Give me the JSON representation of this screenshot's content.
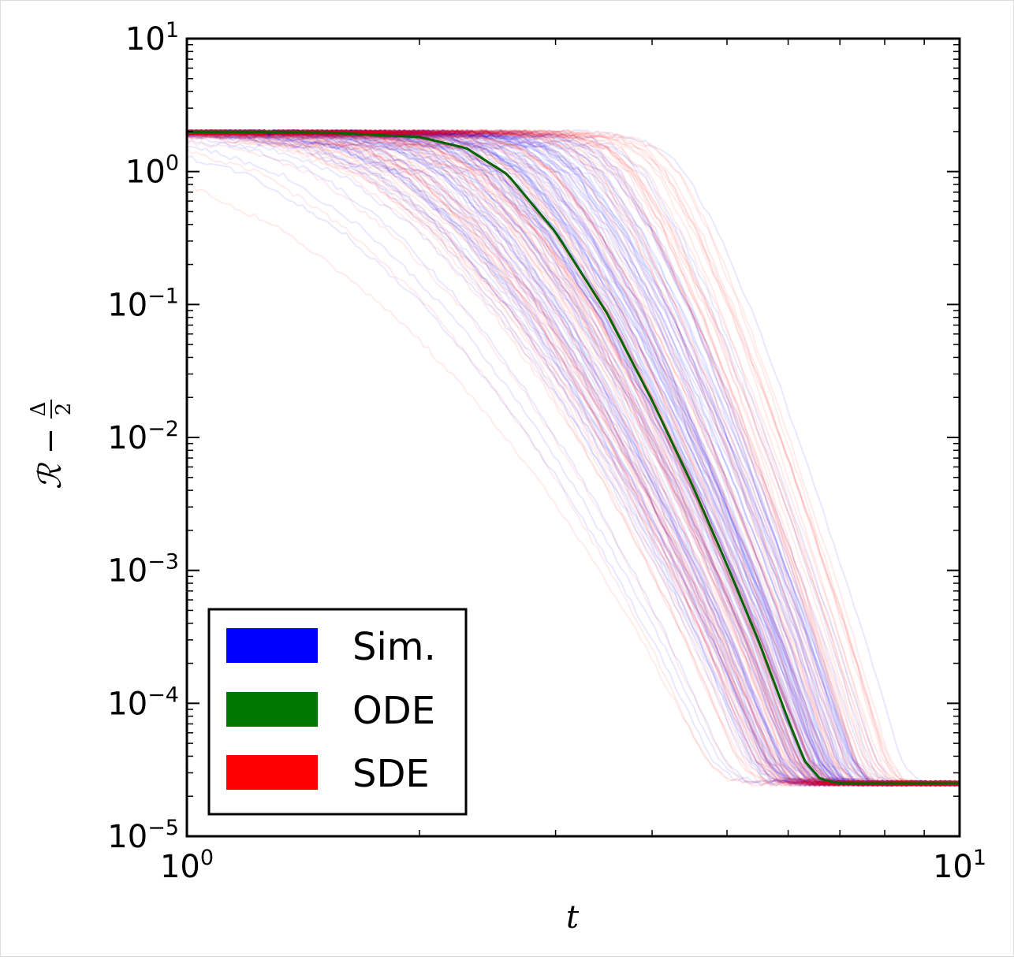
{
  "chart_data": {
    "type": "line",
    "xscale": "log",
    "yscale": "log",
    "xlim": [
      1,
      10
    ],
    "ylim": [
      1e-05,
      10
    ],
    "xlabel": "t",
    "ylabel": "ℛ − Δ/2",
    "ylabel_parts": {
      "main": "ℛ −",
      "frac_num": "Δ",
      "frac_den": "2"
    },
    "x_ticks": [
      {
        "value": 1,
        "base": "10",
        "exp": "0"
      },
      {
        "value": 10,
        "base": "10",
        "exp": "1"
      }
    ],
    "y_ticks": [
      {
        "value": 10,
        "base": "10",
        "exp": "1"
      },
      {
        "value": 1,
        "base": "10",
        "exp": "0"
      },
      {
        "value": 0.1,
        "base": "10",
        "exp": "−1"
      },
      {
        "value": 0.01,
        "base": "10",
        "exp": "−2"
      },
      {
        "value": 0.001,
        "base": "10",
        "exp": "−3"
      },
      {
        "value": 0.0001,
        "base": "10",
        "exp": "−4"
      },
      {
        "value": 1e-05,
        "base": "10",
        "exp": "−5"
      }
    ],
    "legend": {
      "location": "lower-left",
      "entries": [
        {
          "label": "Sim.",
          "color": "#0000ff"
        },
        {
          "label": "ODE",
          "color": "#007700"
        },
        {
          "label": "SDE",
          "color": "#ff0000"
        }
      ]
    },
    "series": [
      {
        "name": "ODE",
        "color": "#006400",
        "x": [
          1.0,
          1.5,
          2.0,
          2.3,
          2.6,
          3.0,
          3.5,
          4.0,
          4.5,
          5.0,
          5.5,
          6.0,
          6.3,
          6.6,
          7.0,
          8.0,
          10.0
        ],
        "y": [
          1.98,
          1.97,
          1.82,
          1.5,
          0.95,
          0.35,
          0.085,
          0.019,
          0.0045,
          0.0011,
          0.00029,
          7.5e-05,
          3.7e-05,
          2.7e-05,
          2.5e-05,
          2.5e-05,
          2.5e-05
        ]
      },
      {
        "name": "Sim.",
        "color": "#0000ff",
        "description_note": "ensemble of ~100 stochastic trajectories, each a time-shifted copy of the ODE curve with spread t-shift roughly in [-1.2, +2.9]",
        "x": [
          1.0,
          10.0
        ],
        "y": [
          1.98,
          2.5e-05
        ]
      },
      {
        "name": "SDE",
        "color": "#ff0000",
        "x": [
          1.0,
          10.0
        ],
        "y": [
          1.98,
          2.5e-05
        ]
      }
    ],
    "ensemble": {
      "Sim": {
        "count": 110,
        "opacity": 0.09
      },
      "SDE": {
        "count": 110,
        "opacity": 0.08
      }
    }
  }
}
